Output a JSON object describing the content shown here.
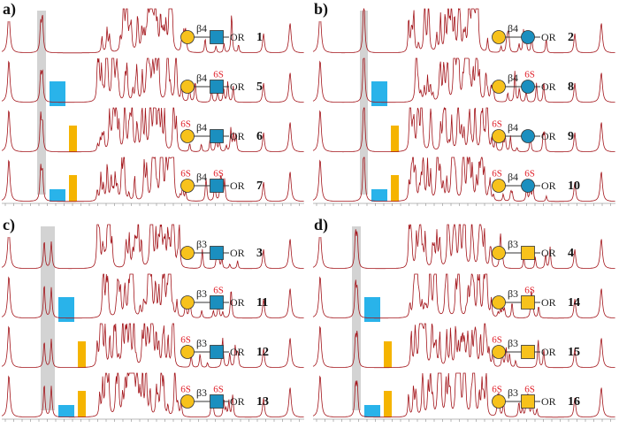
{
  "panels": [
    {
      "label": "a)",
      "rows": [
        {
          "linkage": "β4",
          "aglycone": "OR",
          "number": "1"
        },
        {
          "linkage": "β4",
          "sulfate_reducing": "6S",
          "aglycone": "OR",
          "number": "5"
        },
        {
          "linkage": "β4",
          "sulfate_terminal": "6S",
          "aglycone": "OR",
          "number": "6"
        },
        {
          "linkage": "β4",
          "sulfate_terminal": "6S",
          "sulfate_reducing": "6S",
          "aglycone": "OR",
          "number": "7"
        }
      ]
    },
    {
      "label": "b)",
      "rows": [
        {
          "linkage": "β4",
          "aglycone": "OR",
          "number": "2"
        },
        {
          "linkage": "β4",
          "sulfate_reducing": "6S",
          "aglycone": "OR",
          "number": "8"
        },
        {
          "linkage": "β4",
          "sulfate_terminal": "6S",
          "aglycone": "OR",
          "number": "9"
        },
        {
          "linkage": "β4",
          "sulfate_terminal": "6S",
          "sulfate_reducing": "6S",
          "aglycone": "OR",
          "number": "10"
        }
      ]
    },
    {
      "label": "c)",
      "rows": [
        {
          "linkage": "β3",
          "aglycone": "OR",
          "number": "3"
        },
        {
          "linkage": "β3",
          "sulfate_reducing": "6S",
          "aglycone": "OR",
          "number": "11"
        },
        {
          "linkage": "β3",
          "sulfate_terminal": "6S",
          "aglycone": "OR",
          "number": "12"
        },
        {
          "linkage": "β3",
          "sulfate_terminal": "6S",
          "sulfate_reducing": "6S",
          "aglycone": "OR",
          "number": "13"
        }
      ]
    },
    {
      "label": "d)",
      "rows": [
        {
          "linkage": "β3",
          "aglycone": "OR",
          "number": "4"
        },
        {
          "linkage": "β3",
          "sulfate_reducing": "6S",
          "aglycone": "OR",
          "number": "14"
        },
        {
          "linkage": "β3",
          "sulfate_terminal": "6S",
          "aglycone": "OR",
          "number": "15"
        },
        {
          "linkage": "β3",
          "sulfate_terminal": "6S",
          "sulfate_reducing": "6S",
          "aglycone": "OR",
          "number": "16"
        }
      ]
    }
  ]
}
